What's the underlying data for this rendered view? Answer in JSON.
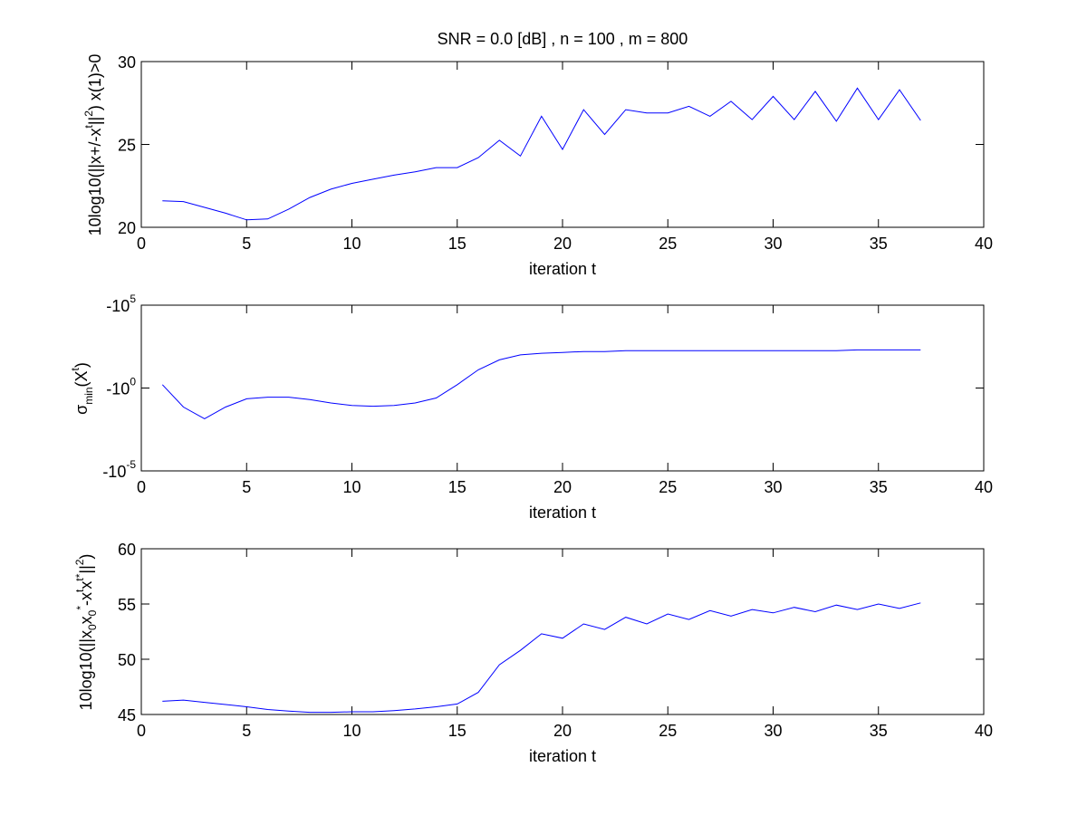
{
  "figure": {
    "title": "SNR = 0.0 [dB] , n = 100 , m = 800"
  },
  "chart_data": [
    {
      "type": "line",
      "title": "SNR = 0.0 [dB] , n = 100 , m = 800",
      "xlabel": "iteration t",
      "ylabel": "10log10(||x+/-x̂t||2) x(1)>0",
      "ylabel_parts": {
        "a": "10log10(||x+/-x",
        "b": "t",
        "c": "||",
        "d": "2",
        "e": ") x(1)>0"
      },
      "xlim": [
        0,
        40
      ],
      "ylim": [
        20,
        30
      ],
      "x_ticks": [
        "0",
        "5",
        "10",
        "15",
        "20",
        "25",
        "30",
        "35",
        "40"
      ],
      "y_ticks": [
        "20",
        "25",
        "30"
      ],
      "y_tick_values": [
        20,
        25,
        30
      ],
      "grid": false,
      "color": "#0000ff",
      "x": [
        1,
        2,
        3,
        4,
        5,
        6,
        7,
        8,
        9,
        10,
        11,
        12,
        13,
        14,
        15,
        16,
        17,
        18,
        19,
        20,
        21,
        22,
        23,
        24,
        25,
        26,
        27,
        28,
        29,
        30,
        31,
        32,
        33,
        34,
        35,
        36,
        37
      ],
      "y": [
        21.6,
        21.55,
        21.2,
        20.85,
        20.45,
        20.5,
        21.1,
        21.8,
        22.3,
        22.65,
        22.9,
        23.15,
        23.35,
        23.6,
        23.6,
        24.2,
        25.25,
        24.3,
        26.7,
        24.7,
        27.1,
        25.6,
        27.1,
        26.9,
        26.9,
        27.3,
        26.7,
        27.6,
        26.5,
        27.9,
        26.5,
        28.2,
        26.4,
        28.4,
        26.5,
        28.3,
        26.45
      ]
    },
    {
      "type": "line",
      "xlabel": "iteration t",
      "ylabel": "σmin(Xt)",
      "ylabel_parts": {
        "sigma": "σ",
        "min": "min",
        "open": "(X",
        "t": "t",
        "close": ")"
      },
      "xlim": [
        0,
        40
      ],
      "ylim": [
        -5,
        5
      ],
      "y_scale": "symlog (negative log scale)",
      "x_ticks": [
        "0",
        "5",
        "10",
        "15",
        "20",
        "25",
        "30",
        "35",
        "40"
      ],
      "y_ticks": [
        {
          "base": "-10",
          "exp": "-5",
          "pos": -5
        },
        {
          "base": "-10",
          "exp": "0",
          "pos": 0
        },
        {
          "base": "-10",
          "exp": "5",
          "pos": 5
        }
      ],
      "grid": false,
      "color": "#0000ff",
      "x": [
        1,
        2,
        3,
        4,
        5,
        6,
        7,
        8,
        9,
        10,
        11,
        12,
        13,
        14,
        15,
        16,
        17,
        18,
        19,
        20,
        21,
        22,
        23,
        24,
        25,
        26,
        27,
        28,
        29,
        30,
        31,
        32,
        33,
        34,
        35,
        36,
        37
      ],
      "log10_magnitude": [
        0.2,
        -1.15,
        -1.85,
        -1.15,
        -0.65,
        -0.55,
        -0.55,
        -0.7,
        -0.9,
        -1.05,
        -1.1,
        -1.05,
        -0.9,
        -0.6,
        0.2,
        1.1,
        1.7,
        2.0,
        2.1,
        2.15,
        2.2,
        2.2,
        2.25,
        2.25,
        2.25,
        2.25,
        2.25,
        2.25,
        2.25,
        2.25,
        2.25,
        2.25,
        2.25,
        2.3,
        2.3,
        2.3,
        2.3
      ]
    },
    {
      "type": "line",
      "xlabel": "iteration t",
      "ylabel": "10log10(||x0x0*-xtxt*||2)",
      "ylabel_parts": {
        "a": "10log10(||x",
        "s0": "0",
        "b": "x",
        "s0b": "0",
        "star1": "*",
        "c": "-x",
        "t1": "t",
        "d": "x",
        "t2": "t*",
        "e": "||",
        "sq": "2",
        "f": ")"
      },
      "xlim": [
        0,
        40
      ],
      "ylim": [
        45,
        60
      ],
      "x_ticks": [
        "0",
        "5",
        "10",
        "15",
        "20",
        "25",
        "30",
        "35",
        "40"
      ],
      "y_ticks": [
        "45",
        "50",
        "55",
        "60"
      ],
      "y_tick_values": [
        45,
        50,
        55,
        60
      ],
      "grid": false,
      "color": "#0000ff",
      "x": [
        1,
        2,
        3,
        4,
        5,
        6,
        7,
        8,
        9,
        10,
        11,
        12,
        13,
        14,
        15,
        16,
        17,
        18,
        19,
        20,
        21,
        22,
        23,
        24,
        25,
        26,
        27,
        28,
        29,
        30,
        31,
        32,
        33,
        34,
        35,
        36,
        37
      ],
      "y": [
        46.2,
        46.3,
        46.1,
        45.9,
        45.7,
        45.45,
        45.3,
        45.2,
        45.2,
        45.25,
        45.25,
        45.35,
        45.5,
        45.7,
        45.95,
        47.0,
        49.5,
        50.8,
        52.3,
        51.9,
        53.2,
        52.7,
        53.8,
        53.2,
        54.1,
        53.6,
        54.4,
        53.9,
        54.5,
        54.2,
        54.7,
        54.3,
        54.9,
        54.5,
        55.0,
        54.6,
        55.1
      ]
    }
  ]
}
